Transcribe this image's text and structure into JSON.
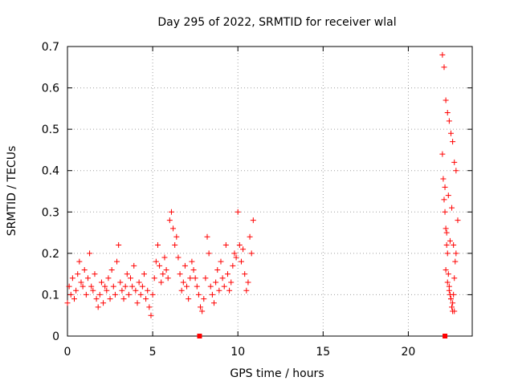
{
  "chart_data": {
    "type": "scatter",
    "title": "Day 295 of 2022, SRMTID for receiver wlal",
    "xlabel": "GPS time / hours",
    "ylabel": "SRMTID / TECUs",
    "xlim": [
      0,
      23.75
    ],
    "ylim": [
      0,
      0.7
    ],
    "xticks": [
      0,
      5,
      10,
      15,
      20
    ],
    "yticks": [
      0,
      0.1,
      0.2,
      0.3,
      0.4,
      0.5,
      0.6,
      0.7
    ],
    "xtick_labels": [
      "0",
      "5",
      "10",
      "15",
      "20"
    ],
    "ytick_labels": [
      "0",
      "0.1",
      "0.2",
      "0.3",
      "0.4",
      "0.5",
      "0.6",
      "0.7"
    ],
    "grid": true,
    "marker": "+",
    "color": "#ff0000",
    "series": [
      {
        "name": "SRMTID",
        "description": "dense scatter of SRMTID samples (values estimated from the plot)",
        "x": [
          0.0,
          0.1,
          0.2,
          0.3,
          0.4,
          0.5,
          0.6,
          0.7,
          0.8,
          0.9,
          1.0,
          1.1,
          1.2,
          1.3,
          1.4,
          1.5,
          1.6,
          1.7,
          1.8,
          1.9,
          2.0,
          2.1,
          2.2,
          2.3,
          2.4,
          2.5,
          2.6,
          2.7,
          2.8,
          2.9,
          3.0,
          3.1,
          3.2,
          3.3,
          3.4,
          3.5,
          3.6,
          3.7,
          3.8,
          3.9,
          4.0,
          4.1,
          4.2,
          4.3,
          4.4,
          4.5,
          4.6,
          4.7,
          4.8,
          4.9,
          5.0,
          5.1,
          5.2,
          5.3,
          5.4,
          5.5,
          5.6,
          5.7,
          5.8,
          5.9,
          6.0,
          6.1,
          6.2,
          6.3,
          6.4,
          6.5,
          6.6,
          6.7,
          6.8,
          6.9,
          7.0,
          7.1,
          7.2,
          7.3,
          7.4,
          7.5,
          7.6,
          7.7,
          7.8,
          7.9,
          8.0,
          8.1,
          8.2,
          8.3,
          8.4,
          8.5,
          8.6,
          8.7,
          8.8,
          8.9,
          9.0,
          9.1,
          9.2,
          9.3,
          9.4,
          9.5,
          9.6,
          9.7,
          9.8,
          9.9,
          10.0,
          10.1,
          10.2,
          10.3,
          10.4,
          10.5,
          10.6,
          10.7,
          10.8,
          10.9,
          22.0,
          22.05,
          22.1,
          22.15,
          22.2,
          22.25,
          22.3,
          22.35,
          22.4,
          22.45,
          22.5,
          22.55,
          22.6,
          22.65,
          22.7,
          22.75,
          22.8,
          22.9,
          22.0,
          22.1,
          22.2,
          22.3,
          22.4,
          22.5,
          22.6,
          22.7,
          22.8,
          22.15,
          22.35,
          22.55,
          22.25,
          22.45,
          22.65,
          22.2,
          22.3,
          22.4,
          22.5,
          22.6,
          22.7
        ],
        "y": [
          0.08,
          0.12,
          0.1,
          0.14,
          0.09,
          0.11,
          0.15,
          0.18,
          0.13,
          0.12,
          0.16,
          0.1,
          0.14,
          0.2,
          0.12,
          0.11,
          0.15,
          0.09,
          0.07,
          0.1,
          0.13,
          0.08,
          0.12,
          0.11,
          0.14,
          0.09,
          0.16,
          0.12,
          0.1,
          0.18,
          0.22,
          0.13,
          0.11,
          0.09,
          0.12,
          0.15,
          0.1,
          0.14,
          0.12,
          0.17,
          0.11,
          0.08,
          0.13,
          0.1,
          0.12,
          0.15,
          0.09,
          0.11,
          0.07,
          0.05,
          0.1,
          0.14,
          0.18,
          0.22,
          0.17,
          0.13,
          0.15,
          0.19,
          0.16,
          0.14,
          0.28,
          0.3,
          0.26,
          0.22,
          0.24,
          0.19,
          0.15,
          0.11,
          0.13,
          0.17,
          0.12,
          0.09,
          0.14,
          0.18,
          0.16,
          0.14,
          0.12,
          0.1,
          0.07,
          0.06,
          0.09,
          0.14,
          0.24,
          0.2,
          0.12,
          0.1,
          0.08,
          0.13,
          0.16,
          0.11,
          0.18,
          0.14,
          0.12,
          0.22,
          0.15,
          0.11,
          0.13,
          0.17,
          0.2,
          0.19,
          0.3,
          0.22,
          0.18,
          0.21,
          0.15,
          0.11,
          0.13,
          0.24,
          0.2,
          0.28,
          0.44,
          0.38,
          0.33,
          0.3,
          0.26,
          0.22,
          0.2,
          0.15,
          0.12,
          0.1,
          0.09,
          0.07,
          0.06,
          0.1,
          0.14,
          0.18,
          0.2,
          0.28,
          0.68,
          0.65,
          0.57,
          0.54,
          0.52,
          0.49,
          0.47,
          0.42,
          0.4,
          0.36,
          0.34,
          0.31,
          0.25,
          0.23,
          0.22,
          0.16,
          0.13,
          0.11,
          0.09,
          0.08,
          0.06
        ],
        "x_axis_markers": [
          7.75,
          22.15
        ]
      }
    ]
  }
}
